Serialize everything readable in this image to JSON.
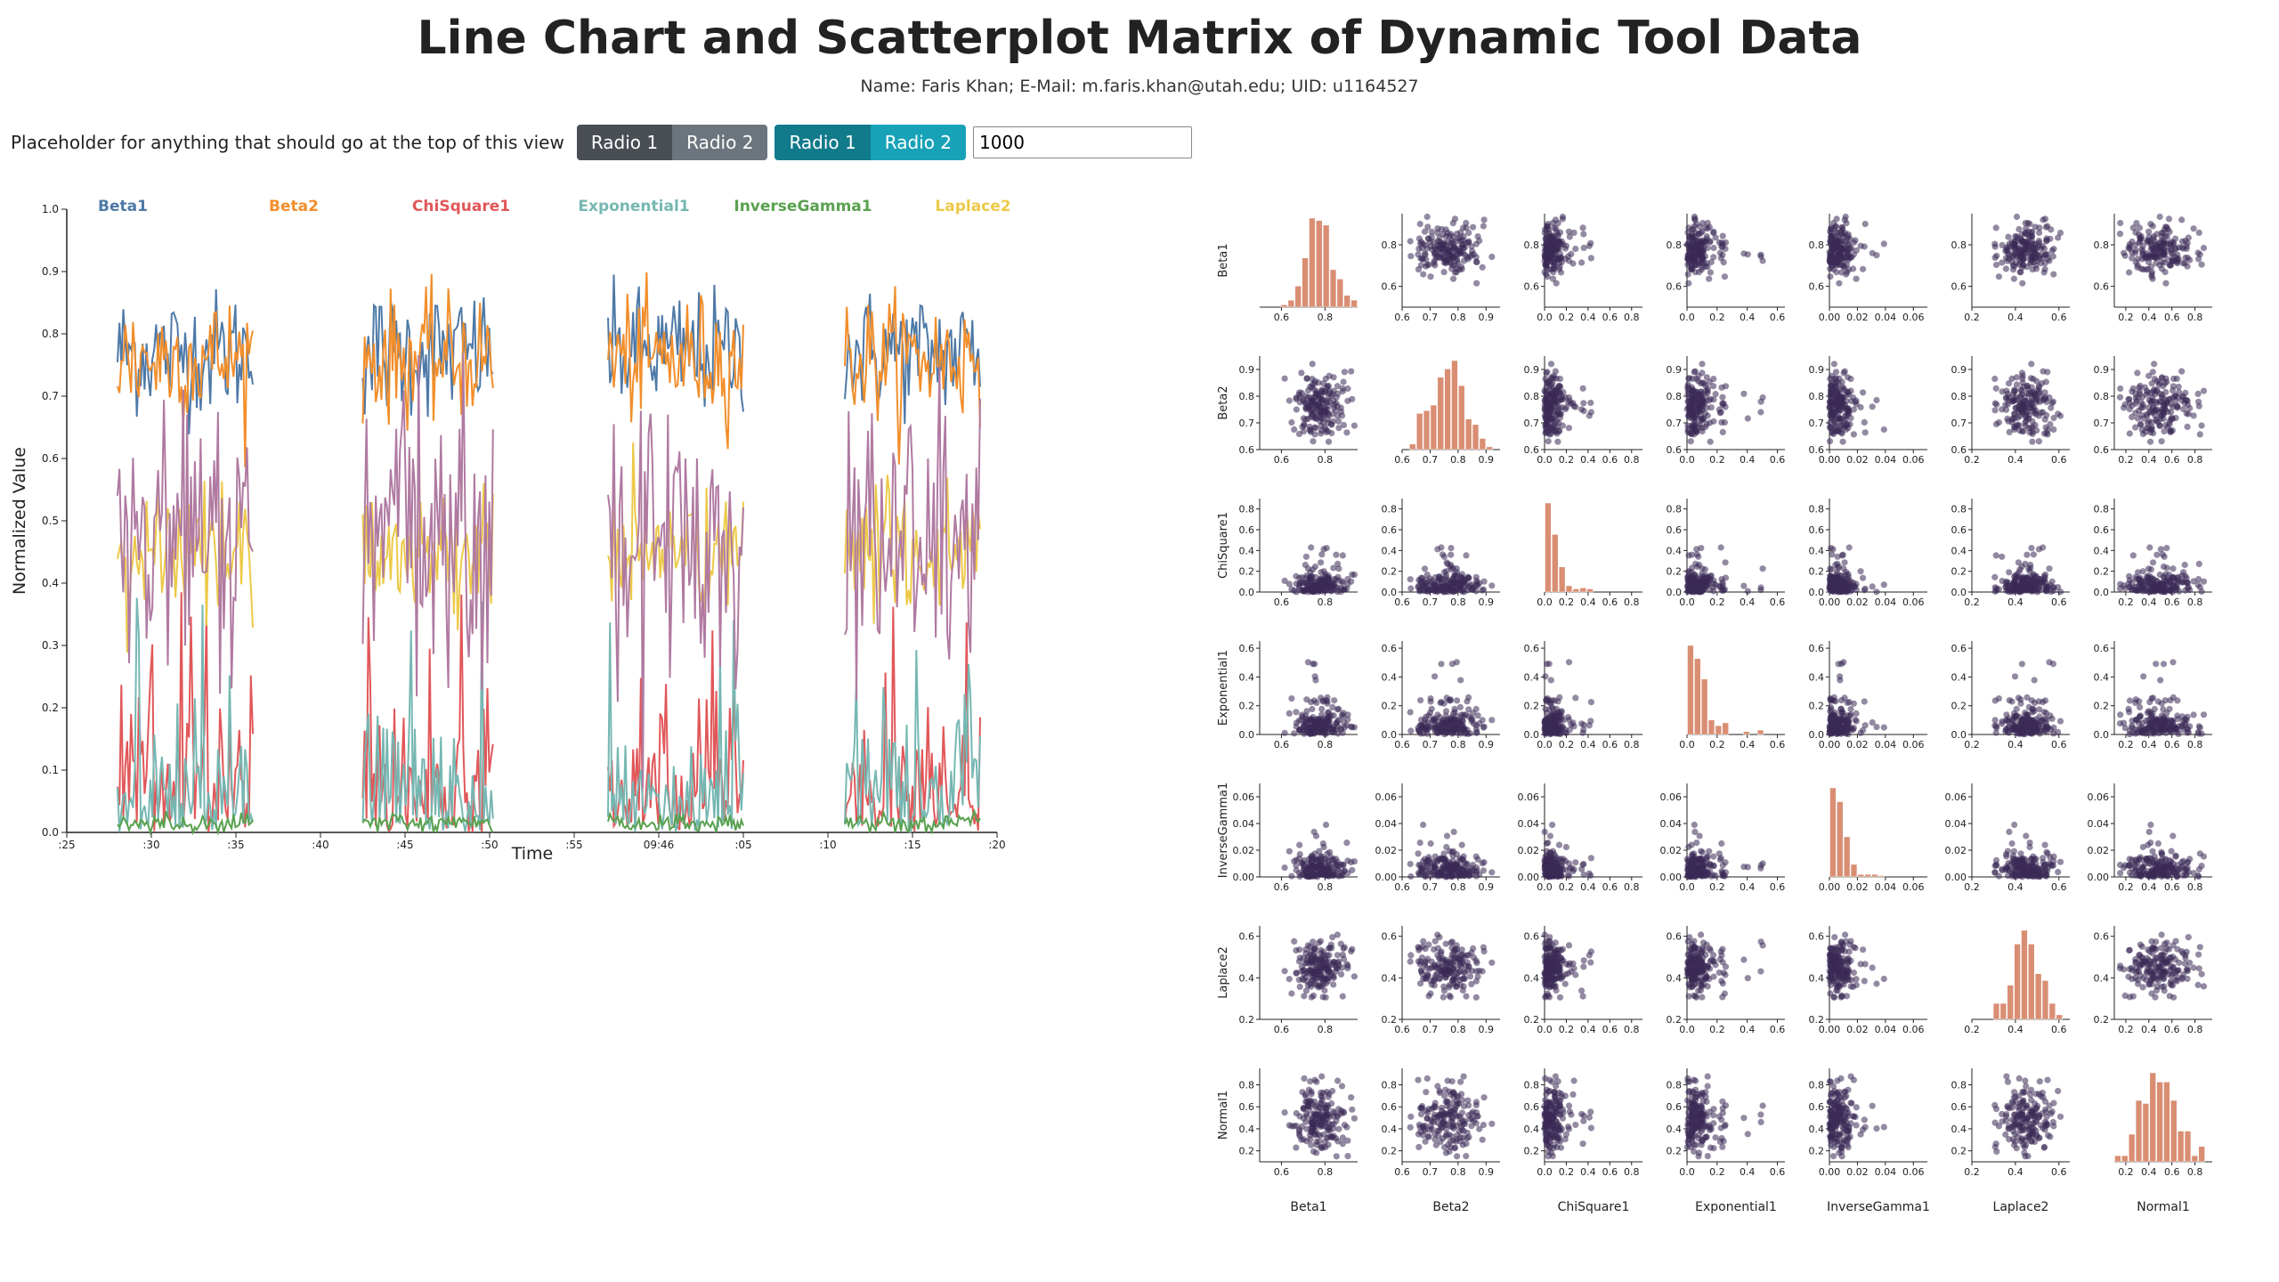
{
  "title": "Line Chart and Scatterplot Matrix of Dynamic Tool Data",
  "subtitle": "Name: Faris Khan; E-Mail: m.faris.khan@utah.edu; UID: u1164527",
  "controls": {
    "placeholder_text": "Placeholder for anything that should go at the top of this view",
    "group1": [
      "Radio 1",
      "Radio 2"
    ],
    "group2": [
      "Radio 1",
      "Radio 2"
    ],
    "input_value": "1000"
  },
  "colors": {
    "hist_bar": "#d98e73",
    "scatter_point": "#3b2a55"
  },
  "chart_data": [
    {
      "type": "line",
      "xlabel": "Time",
      "ylabel": "Normalized Value",
      "ylim": [
        0,
        1
      ],
      "y_ticks": [
        "0.0",
        "0.1",
        "0.2",
        "0.3",
        "0.4",
        "0.5",
        "0.6",
        "0.7",
        "0.8",
        "0.9",
        "1.0"
      ],
      "x_ticks": [
        ":25",
        ":30",
        ":35",
        ":40",
        ":45",
        ":50",
        ":55",
        "09:46",
        ":05",
        ":10",
        ":15",
        ":20"
      ],
      "grid": false,
      "legend_placement": "top",
      "note": "four bursts of samples separated by gaps; values approximate",
      "segments": [
        [
          28.0,
          36.0
        ],
        [
          42.5,
          50.2
        ],
        [
          57.0,
          65.0
        ],
        [
          71.0,
          79.0
        ]
      ],
      "series": [
        {
          "name": "Beta1",
          "color": "#4e79a7",
          "mean": 0.77,
          "spread": 0.05
        },
        {
          "name": "Beta2",
          "color": "#f28e2b",
          "mean": 0.76,
          "spread": 0.05
        },
        {
          "name": "ChiSquare1",
          "color": "#e15759",
          "mean": 0.08,
          "spread": 0.09
        },
        {
          "name": "Exponential1",
          "color": "#76b7b2",
          "mean": 0.09,
          "spread": 0.08
        },
        {
          "name": "InverseGamma1",
          "color": "#59a14f",
          "mean": 0.015,
          "spread": 0.008
        },
        {
          "name": "Laplace2",
          "color": "#edc948",
          "mean": 0.45,
          "spread": 0.05
        },
        {
          "name": "Normal1",
          "color": "#b07aa1",
          "mean": 0.47,
          "spread": 0.12
        }
      ]
    },
    {
      "type": "scatter",
      "title": "",
      "variables": [
        "Beta1",
        "Beta2",
        "ChiSquare1",
        "Exponential1",
        "InverseGamma1",
        "Laplace2",
        "Normal1"
      ],
      "note": "scatterplot matrix; diagonal cells are histograms; point positions approximate",
      "ranges": [
        [
          0.5,
          0.95
        ],
        [
          0.6,
          0.95
        ],
        [
          0,
          0.9
        ],
        [
          0,
          0.65
        ],
        [
          0,
          0.07
        ],
        [
          0.2,
          0.65
        ],
        [
          0.1,
          0.95
        ]
      ],
      "ticks": [
        [
          "0.6",
          "0.8"
        ],
        [
          "0.6",
          "0.7",
          "0.8",
          "0.9"
        ],
        [
          "0.0",
          "0.2",
          "0.4",
          "0.6",
          "0.8"
        ],
        [
          "0.0",
          "0.2",
          "0.4",
          "0.6"
        ],
        [
          "0.00",
          "0.02",
          "0.04",
          "0.06"
        ],
        [
          "0.2",
          "0.4",
          "0.6"
        ],
        [
          "0.2",
          "0.4",
          "0.6",
          "0.8"
        ]
      ],
      "tick_values": [
        [
          0.6,
          0.8
        ],
        [
          0.6,
          0.7,
          0.8,
          0.9
        ],
        [
          0,
          0.2,
          0.4,
          0.6,
          0.8
        ],
        [
          0,
          0.2,
          0.4,
          0.6
        ],
        [
          0,
          0.02,
          0.04,
          0.06
        ],
        [
          0.2,
          0.4,
          0.6
        ],
        [
          0.2,
          0.4,
          0.6,
          0.8
        ]
      ],
      "distribution": [
        {
          "mean": 0.77,
          "sd": 0.06
        },
        {
          "mean": 0.77,
          "sd": 0.06
        },
        {
          "mean": 0.09,
          "sd": 0.1,
          "skew": true
        },
        {
          "mean": 0.1,
          "sd": 0.1,
          "skew": true
        },
        {
          "mean": 0.012,
          "sd": 0.01,
          "skew": true
        },
        {
          "mean": 0.45,
          "sd": 0.06
        },
        {
          "mean": 0.5,
          "sd": 0.15
        }
      ]
    }
  ]
}
